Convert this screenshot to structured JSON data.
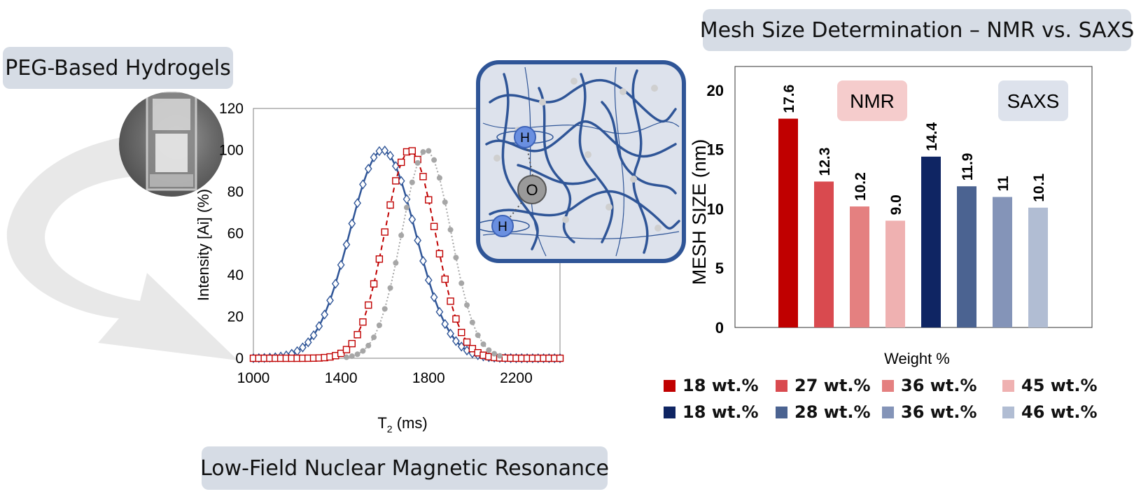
{
  "labels": {
    "peg_title": "PEG-Based Hydrogels",
    "mesh_title": "Mesh Size Determination – NMR vs. SAXS",
    "lf_nmr_title": "Low-Field Nuclear Magnetic Resonance"
  },
  "molecule": {
    "h1": "H",
    "h2": "H",
    "o": "O"
  },
  "chart_data": [
    {
      "type": "line",
      "xlabel": "T",
      "xlabel_sub": "2",
      "xlabel_unit": " (ms)",
      "ylabel": "Intensity [Ai] (%)",
      "xlim": [
        1000,
        2400
      ],
      "ylim": [
        0,
        120
      ],
      "xticks": [
        1000,
        1400,
        1800,
        2200
      ],
      "yticks": [
        0,
        20,
        40,
        60,
        80,
        100,
        120
      ],
      "series": [
        {
          "name": "blue-diamond",
          "color": "#2f5597",
          "marker": "diamond",
          "style": "solid",
          "center": 1590,
          "sigma": 150,
          "x": [
            1000,
            1025,
            1050,
            1075,
            1100,
            1125,
            1150,
            1175,
            1200,
            1225,
            1250,
            1275,
            1300,
            1325,
            1350,
            1375,
            1400,
            1425,
            1450,
            1475,
            1500,
            1525,
            1550,
            1575,
            1600,
            1625,
            1650,
            1675,
            1700,
            1725,
            1750,
            1775,
            1800,
            1825,
            1850,
            1875,
            1900,
            1925,
            1950,
            1975,
            2000,
            2025,
            2050,
            2075,
            2100,
            2125,
            2150,
            2175,
            2200,
            2225,
            2250,
            2275,
            2300,
            2325,
            2350,
            2375,
            2400
          ]
        },
        {
          "name": "red-square",
          "color": "#c00000",
          "marker": "square",
          "style": "dashed",
          "center": 1715,
          "sigma": 115,
          "x": [
            1000,
            1025,
            1050,
            1075,
            1100,
            1125,
            1150,
            1175,
            1200,
            1225,
            1250,
            1275,
            1300,
            1325,
            1350,
            1375,
            1400,
            1425,
            1450,
            1475,
            1500,
            1525,
            1550,
            1575,
            1600,
            1625,
            1650,
            1675,
            1700,
            1725,
            1750,
            1775,
            1800,
            1825,
            1850,
            1875,
            1900,
            1925,
            1950,
            1975,
            2000,
            2025,
            2050,
            2075,
            2100,
            2125,
            2150,
            2175,
            2200,
            2225,
            2250,
            2275,
            2300,
            2325,
            2350,
            2375,
            2400
          ]
        },
        {
          "name": "gray-circle",
          "color": "#a6a6a6",
          "marker": "circle",
          "style": "dotted",
          "center": 1790,
          "sigma": 112,
          "x": [
            1425,
            1450,
            1475,
            1500,
            1525,
            1550,
            1575,
            1600,
            1625,
            1650,
            1675,
            1700,
            1725,
            1750,
            1775,
            1800,
            1825,
            1850,
            1875,
            1900,
            1925,
            1950,
            1975,
            2000,
            2025,
            2050,
            2075,
            2100,
            2125
          ]
        }
      ]
    },
    {
      "type": "bar",
      "ylabel": "MESH SIZE  (nm)",
      "xlabel": "Weight %",
      "ylim": [
        0,
        22
      ],
      "yticks": [
        0,
        5,
        10,
        15,
        20
      ],
      "group_labels": [
        "NMR",
        "SAXS"
      ],
      "bars": [
        {
          "group": "NMR",
          "label": "18 wt.%",
          "value": 17.6,
          "text": "17.6",
          "color": "#c00000"
        },
        {
          "group": "NMR",
          "label": "27 wt.%",
          "value": 12.3,
          "text": "12.3",
          "color": "#d94a4f"
        },
        {
          "group": "NMR",
          "label": "36 wt.%",
          "value": 10.2,
          "text": "10.2",
          "color": "#e48080"
        },
        {
          "group": "NMR",
          "label": "45 wt.%",
          "value": 9.0,
          "text": "9.0",
          "color": "#efb1b1"
        },
        {
          "group": "SAXS",
          "label": "18 wt.%",
          "value": 14.4,
          "text": "14.4",
          "color": "#0f2563"
        },
        {
          "group": "SAXS",
          "label": "28 wt.%",
          "value": 11.9,
          "text": "11.9",
          "color": "#4b6391"
        },
        {
          "group": "SAXS",
          "label": "36 wt.%",
          "value": 11,
          "text": "11",
          "color": "#8494b8"
        },
        {
          "group": "SAXS",
          "label": "46 wt.%",
          "value": 10.1,
          "text": "10.1",
          "color": "#b1bdd3"
        }
      ]
    }
  ]
}
